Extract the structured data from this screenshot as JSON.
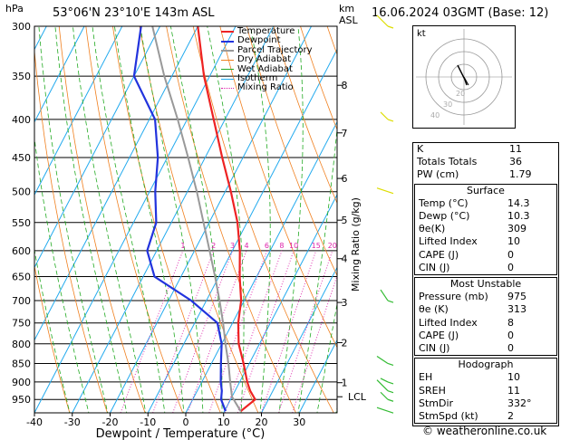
{
  "header": {
    "hpa_label": "hPa",
    "location": "53°06'N  23°10'E  143m  ASL",
    "km_label": "km",
    "asl_label": "ASL",
    "datetime": "16.06.2024  03GMT  (Base: 12)"
  },
  "legend": [
    {
      "label": "Temperature",
      "color": "#ee2222"
    },
    {
      "label": "Dewpoint",
      "color": "#2233dd"
    },
    {
      "label": "Parcel Trajectory",
      "color": "#999999"
    },
    {
      "label": "Dry Adiabat",
      "color": "#f08020"
    },
    {
      "label": "Wet Adiabat",
      "color": "#22aa22"
    },
    {
      "label": "Isotherm",
      "color": "#22aaee"
    },
    {
      "label": "Mixing Ratio",
      "color": "#dd22aa"
    }
  ],
  "chart_data": {
    "type": "line",
    "xlabel": "Dewpoint / Temperature (°C)",
    "ylabel": "Mixing Ratio (g/kg)",
    "pressure_ticks": [
      300,
      350,
      400,
      450,
      500,
      550,
      600,
      650,
      700,
      750,
      800,
      850,
      900,
      950
    ],
    "temp_ticks": [
      -40,
      -30,
      -20,
      -10,
      0,
      10,
      20,
      30
    ],
    "xlim": [
      -40,
      40
    ],
    "ylim_hpa": [
      1000,
      300
    ],
    "km_ticks": [
      {
        "label": "8",
        "p": 360
      },
      {
        "label": "7",
        "p": 417
      },
      {
        "label": "6",
        "p": 480
      },
      {
        "label": "5",
        "p": 546
      },
      {
        "label": "4",
        "p": 615
      },
      {
        "label": "3",
        "p": 704
      },
      {
        "label": "2",
        "p": 797
      },
      {
        "label": "1",
        "p": 902
      },
      {
        "label": "LCL",
        "p": 942
      }
    ],
    "mixing_ratio_labels": [
      "1",
      "2",
      "3",
      "4",
      "6",
      "8",
      "10",
      "15",
      "20",
      "25"
    ],
    "mixing_ratio_values": [
      1,
      2,
      3,
      4,
      6,
      8,
      10,
      15,
      20,
      25
    ],
    "mixing_ratio_label_p": 600,
    "series": [
      {
        "name": "Temperature",
        "color": "#ee2222",
        "p": [
          985,
          950,
          925,
          900,
          850,
          800,
          750,
          700,
          650,
          600,
          550,
          500,
          450,
          400,
          350,
          300
        ],
        "t": [
          14.3,
          16.5,
          14.0,
          12.0,
          8.5,
          4.5,
          1.5,
          -0.8,
          -4.5,
          -8.0,
          -12.5,
          -18.5,
          -25.5,
          -33.0,
          -41.5,
          -50.0
        ]
      },
      {
        "name": "Dewpoint",
        "color": "#2233dd",
        "p": [
          985,
          950,
          925,
          900,
          850,
          800,
          750,
          700,
          650,
          600,
          550,
          500,
          450,
          400,
          350,
          300
        ],
        "t": [
          10.3,
          7.5,
          6.5,
          5.0,
          2.5,
          0.0,
          -4.0,
          -14.0,
          -27.0,
          -32.5,
          -34.0,
          -38.5,
          -42.5,
          -48.5,
          -60.0,
          -65.0
        ]
      },
      {
        "name": "Parcel Trajectory",
        "color": "#999999",
        "p": [
          985,
          942,
          900,
          850,
          800,
          750,
          700,
          650,
          600,
          550,
          500,
          450,
          400,
          350,
          300
        ],
        "t": [
          14.3,
          10.0,
          7.5,
          4.5,
          1.0,
          -2.5,
          -6.5,
          -11.0,
          -16.0,
          -21.5,
          -27.5,
          -34.5,
          -42.5,
          -52.0,
          -62.0
        ]
      }
    ]
  },
  "hodograph": {
    "label": "kt",
    "ring_labels": [
      "40",
      "30",
      "20"
    ]
  },
  "wind_profile": {
    "levels_hpa": [
      300,
      400,
      500,
      700,
      850,
      900,
      925,
      950,
      985
    ],
    "colors": [
      "#33bb33",
      "#dddd00"
    ]
  },
  "indices": {
    "rows": [
      {
        "label": "K",
        "value": "11"
      },
      {
        "label": "Totals Totals",
        "value": "36"
      },
      {
        "label": "PW (cm)",
        "value": "1.79"
      }
    ],
    "surface": {
      "title": "Surface",
      "rows": [
        {
          "label": "Temp (°C)",
          "value": "14.3"
        },
        {
          "label": "Dewp (°C)",
          "value": "10.3"
        },
        {
          "label": "θe(K)",
          "value": "309"
        },
        {
          "label": "Lifted Index",
          "value": "10"
        },
        {
          "label": "CAPE (J)",
          "value": "0"
        },
        {
          "label": "CIN (J)",
          "value": "0"
        }
      ]
    },
    "most_unstable": {
      "title": "Most Unstable",
      "rows": [
        {
          "label": "Pressure (mb)",
          "value": "975"
        },
        {
          "label": "θe (K)",
          "value": "313"
        },
        {
          "label": "Lifted Index",
          "value": "8"
        },
        {
          "label": "CAPE (J)",
          "value": "0"
        },
        {
          "label": "CIN (J)",
          "value": "0"
        }
      ]
    },
    "hodograph": {
      "title": "Hodograph",
      "rows": [
        {
          "label": "EH",
          "value": "10"
        },
        {
          "label": "SREH",
          "value": "11"
        },
        {
          "label": "StmDir",
          "value": "332°"
        },
        {
          "label": "StmSpd (kt)",
          "value": "2"
        }
      ]
    }
  },
  "footer": "© weatheronline.co.uk"
}
